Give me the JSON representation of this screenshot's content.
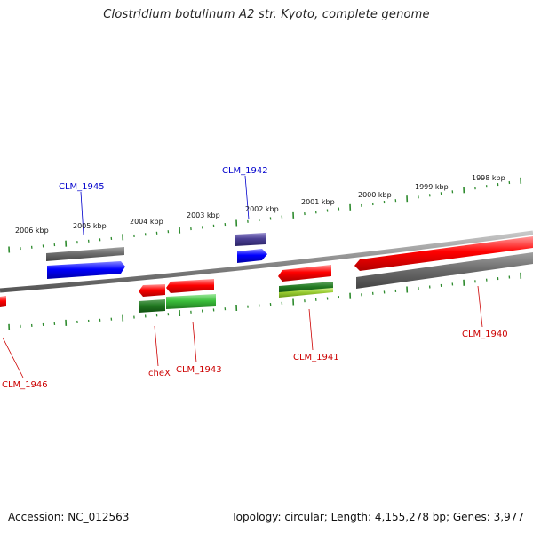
{
  "header": {
    "title": "Clostridium botulinum A2 str. Kyoto, complete genome"
  },
  "footer": {
    "accession": "Accession: NC_012563",
    "summary": "Topology: circular; Length: 4,155,278 bp; Genes: 3,977"
  },
  "ruler": {
    "labels": [
      "2006 kbp",
      "2005 kbp",
      "2004 kbp",
      "2003 kbp",
      "2002 kbp",
      "2001 kbp",
      "2000 kbp",
      "1999 kbp",
      "1998 kbp"
    ]
  },
  "genes": {
    "labels": [
      "CLM_1945",
      "CLM_1942",
      "CLM_1946",
      "cheX",
      "CLM_1943",
      "CLM_1941",
      "CLM_1940"
    ]
  },
  "colors": {
    "forward_label": "#0000cc",
    "reverse_label": "#cc0000",
    "forward_gene": "#0000ff",
    "reverse_gene": "#ff0000",
    "rna_gene": "#4a3f94",
    "cog_gray": "#6e6e6e",
    "cog_green": "#3cbf3c",
    "cog_lime": "#9acd32",
    "ruler_tick": "#2e8b2e",
    "backbone": "#8a8a8a"
  }
}
